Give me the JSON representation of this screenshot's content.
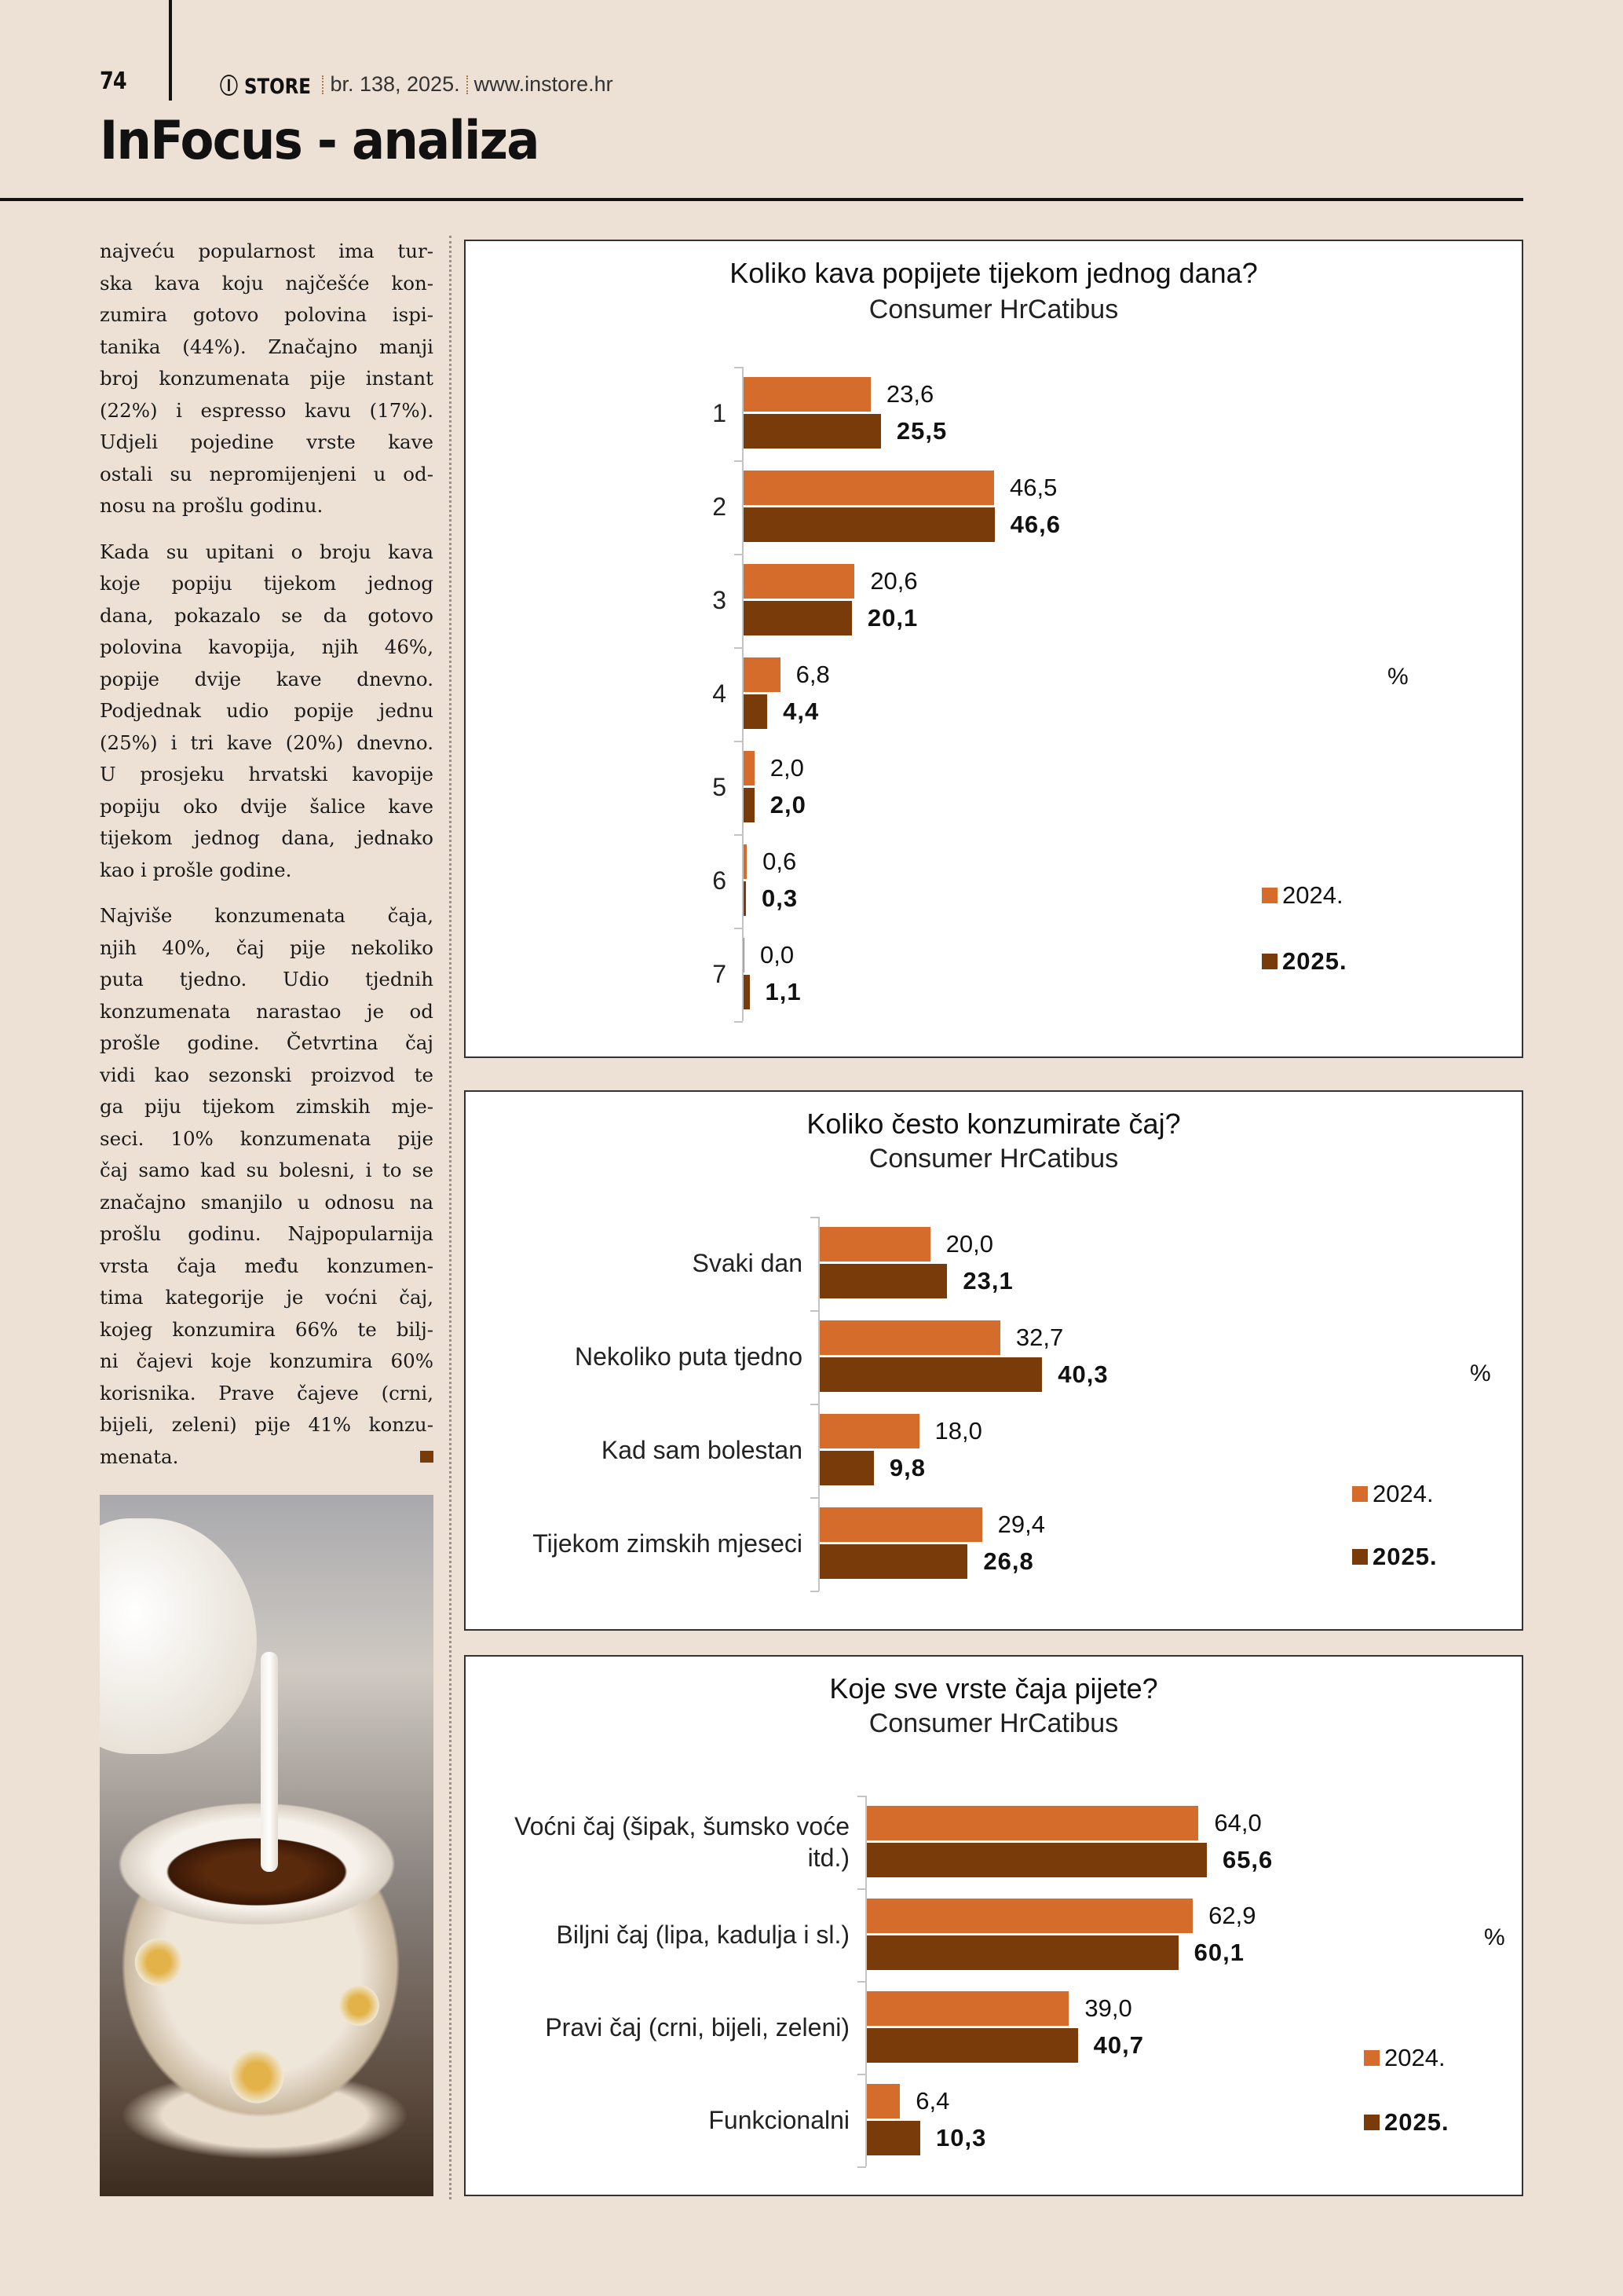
{
  "header": {
    "page_number": "74",
    "logo": "IN STORE",
    "issue": "br. 138, 2025.",
    "website": "www.instore.hr",
    "section_title": "InFocus - analiza"
  },
  "article": {
    "paragraphs": [
      [
        "najveću popularnost ima tur-",
        "ska kava koju najčešće kon-",
        "zumira gotovo polovina ispi-",
        "tanika (44%). Značajno manji",
        "broj konzumenata pije instant",
        "(22%) i espresso kavu (17%).",
        "Udjeli pojedine vrste kave",
        "ostali su nepromijenjeni u od-",
        "nosu na prošlu godinu."
      ],
      [
        "Kada su upitani o broju kava",
        "koje popiju tijekom jednog",
        "dana, pokazalo se da gotovo",
        "polovina kavopija, njih 46%,",
        "popije dvije kave dnevno.",
        "Podjednak udio popije jednu",
        "(25%) i tri kave (20%) dnevno.",
        "U prosjeku hrvatski kavopije",
        "popiju oko dvije šalice kave",
        "tijekom jednog dana, jednako",
        "kao i prošle godine."
      ],
      [
        "Najviše konzumenata čaja,",
        "njih 40%, čaj pije nekoliko",
        "puta tjedno. Udio tjednih",
        "konzumenata narastao je od",
        "prošle godine. Četvrtina čaj",
        "vidi kao sezonski proizvod te",
        "ga piju tijekom zimskih mje-",
        "seci. 10% konzumenata pije",
        "čaj samo kad su bolesni, i to se",
        "značajno smanjilo u odnosu na",
        "prošlu godinu. Najpopularnija",
        "vrsta čaja među konzumen-",
        "tima kategorije je voćni čaj,",
        "kojeg konzumira 66% te bilj-",
        "ni čajevi koje konzumira 60%",
        "korisnika. Prave čajeve (crni,",
        "bijeli, zeleni) pije 41% konzu-",
        "menata."
      ]
    ]
  },
  "colors": {
    "background": "#ede1d5",
    "series_2024": "#d56c2c",
    "series_2025": "#7a3b0a"
  },
  "chart_data": [
    {
      "type": "bar",
      "orientation": "horizontal",
      "title": "Koliko kava popijete tijekom jednog dana?",
      "subtitle": "Consumer HrCatibus",
      "unit": "%",
      "legend_placement": "right",
      "categories": [
        "1",
        "2",
        "3",
        "4",
        "5",
        "6",
        "7"
      ],
      "series": [
        {
          "name": "2024.",
          "values": [
            23.6,
            46.5,
            20.6,
            6.8,
            2.0,
            0.6,
            0.0
          ],
          "labels": [
            "23,6",
            "46,5",
            "20,6",
            "6,8",
            "2,0",
            "0,6",
            "0,0"
          ]
        },
        {
          "name": "2025.",
          "values": [
            25.5,
            46.6,
            20.1,
            4.4,
            2.0,
            0.3,
            1.1
          ],
          "labels": [
            "25,5",
            "46,6",
            "20,1",
            "4,4",
            "2,0",
            "0,3",
            "1,1"
          ]
        }
      ]
    },
    {
      "type": "bar",
      "orientation": "horizontal",
      "title": "Koliko često konzumirate čaj?",
      "subtitle": "Consumer HrCatibus",
      "unit": "%",
      "legend_placement": "right",
      "categories": [
        "Svaki dan",
        "Nekoliko puta tjedno",
        "Kad sam bolestan",
        "Tijekom zimskih mjeseci"
      ],
      "series": [
        {
          "name": "2024.",
          "values": [
            20.0,
            32.7,
            18.0,
            29.4
          ],
          "labels": [
            "20,0",
            "32,7",
            "18,0",
            "29,4"
          ]
        },
        {
          "name": "2025.",
          "values": [
            23.1,
            40.3,
            9.8,
            26.8
          ],
          "labels": [
            "23,1",
            "40,3",
            "9,8",
            "26,8"
          ]
        }
      ]
    },
    {
      "type": "bar",
      "orientation": "horizontal",
      "title": "Koje sve vrste čaja pijete?",
      "subtitle": "Consumer HrCatibus",
      "unit": "%",
      "legend_placement": "right",
      "categories": [
        "Voćni čaj (šipak, šumsko voće itd.)",
        "Biljni čaj (lipa, kadulja i sl.)",
        "Pravi čaj (crni, bijeli, zeleni)",
        "Funkcionalni"
      ],
      "series": [
        {
          "name": "2024.",
          "values": [
            64.0,
            62.9,
            39.0,
            6.4
          ],
          "labels": [
            "64,0",
            "62,9",
            "39,0",
            "6,4"
          ]
        },
        {
          "name": "2025.",
          "values": [
            65.6,
            60.1,
            40.7,
            10.3
          ],
          "labels": [
            "65,6",
            "60,1",
            "40,7",
            "10,3"
          ]
        }
      ]
    }
  ]
}
